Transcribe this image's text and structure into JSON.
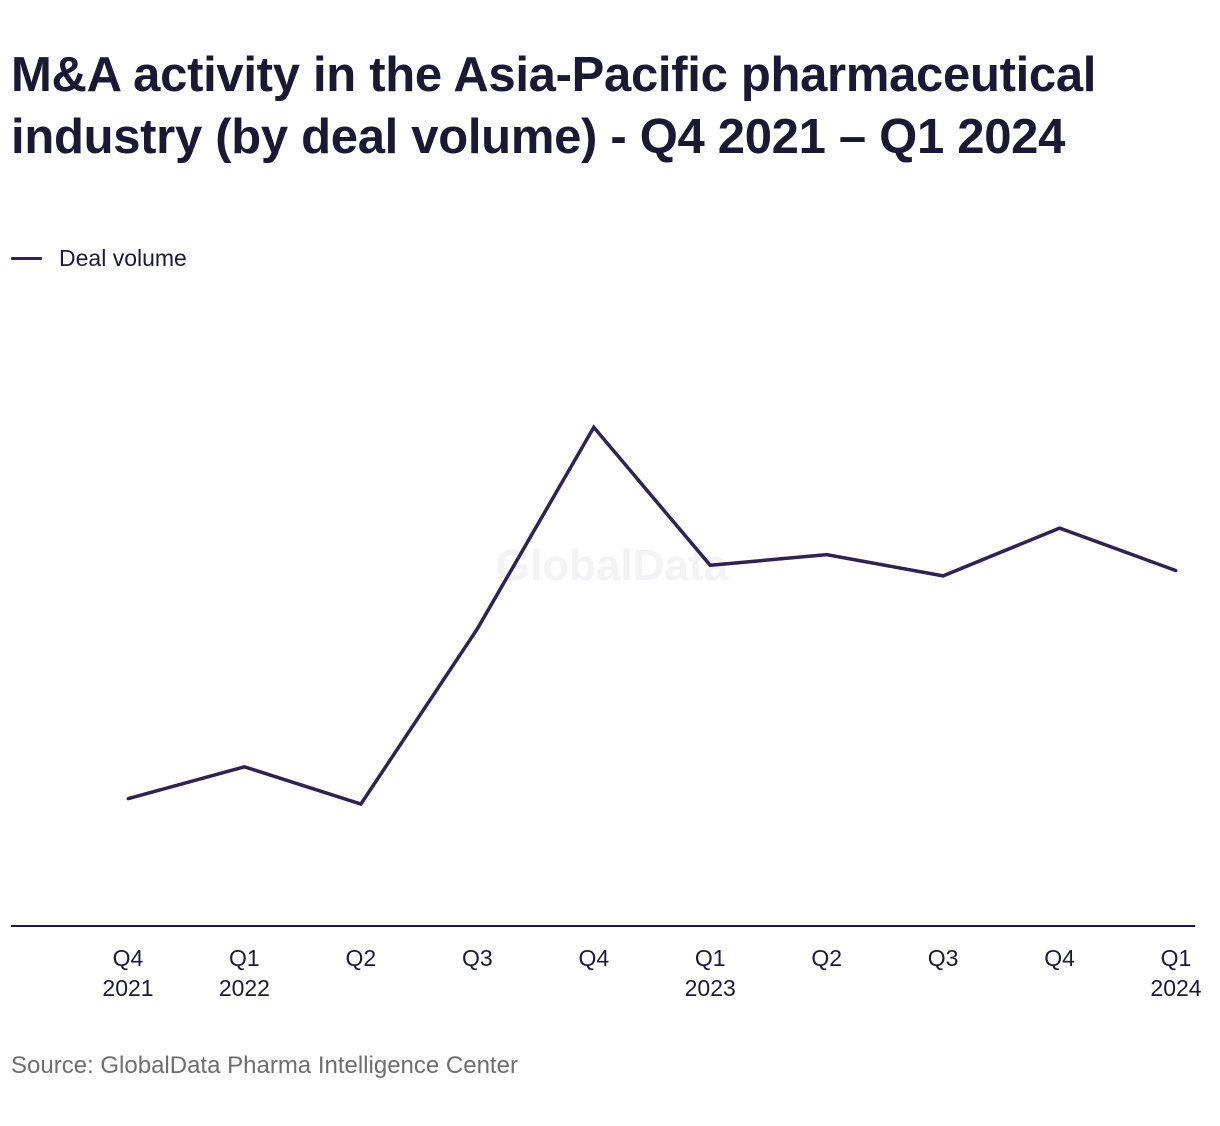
{
  "title": "M&A activity in the Asia-Pacific pharmaceutical industry (by deal volume) - Q4 2021 – Q1 2024",
  "source": "Source: GlobalData Pharma Intelligence Center",
  "watermark": "GlobalData",
  "colors": {
    "line": "#2f2350",
    "axis": "#1c1a33",
    "source_text": "#6e6e6e"
  },
  "chart_data": {
    "type": "line",
    "title": "M&A activity in the Asia-Pacific pharmaceutical industry (by deal volume) - Q4 2021 – Q1 2024",
    "xlabel": "",
    "ylabel": "",
    "categories": [
      [
        "Q4",
        "2021"
      ],
      [
        "Q1",
        "2022"
      ],
      [
        "Q2",
        ""
      ],
      [
        "Q3",
        ""
      ],
      [
        "Q4",
        ""
      ],
      [
        "Q1",
        "2023"
      ],
      [
        "Q2",
        ""
      ],
      [
        "Q3",
        ""
      ],
      [
        "Q4",
        ""
      ],
      [
        "Q1",
        "2024"
      ]
    ],
    "series": [
      {
        "name": "Deal volume",
        "values": [
          31,
          34,
          30.5,
          47,
          66,
          53,
          54,
          52,
          56.5,
          52.5
        ]
      }
    ],
    "ylim": [
      19,
      78
    ],
    "grid": false,
    "y_axis_labels_shown": false,
    "legend_position": "top-left"
  }
}
